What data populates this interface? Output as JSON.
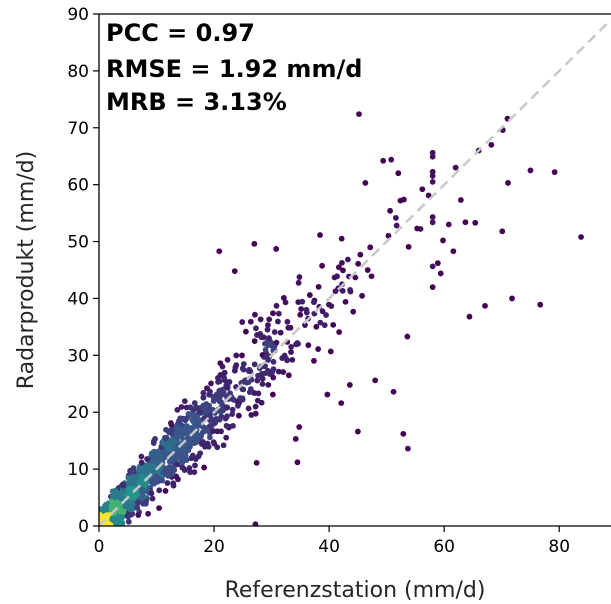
{
  "chart_data": {
    "type": "scatter",
    "variant": "hexbin-density",
    "xlabel": "Referenzstation (mm/d)",
    "ylabel": "Radarprodukt (mm/d)",
    "xlim": [
      0,
      89
    ],
    "ylim": [
      0,
      90
    ],
    "x_ticks": [
      "0",
      "20",
      "40",
      "60",
      "80"
    ],
    "y_ticks": [
      "0",
      "10",
      "20",
      "30",
      "40",
      "50",
      "60",
      "70",
      "80",
      "90"
    ],
    "grid": false,
    "reference_line": "1:1",
    "colormap": "viridis",
    "annotations": [
      "PCC = 0.97",
      "RMSE = 1.92 mm/d",
      "MRB = 3.13%"
    ],
    "outlier_points": [
      [
        45.2,
        72.4
      ],
      [
        71.0,
        71.6
      ],
      [
        70.2,
        69.6
      ],
      [
        68.2,
        67.0
      ],
      [
        49.4,
        64.2
      ],
      [
        66.0,
        66.0
      ],
      [
        62.0,
        63.0
      ],
      [
        79.2,
        62.2
      ],
      [
        75.0,
        62.5
      ],
      [
        56.2,
        59.2
      ],
      [
        46.3,
        60.3
      ],
      [
        71.1,
        60.3
      ],
      [
        52.4,
        57.2
      ],
      [
        57.3,
        58.1
      ],
      [
        50.6,
        55.4
      ],
      [
        62.9,
        57.3
      ],
      [
        55.3,
        52.3
      ],
      [
        65.4,
        53.3
      ],
      [
        63.7,
        53.4
      ],
      [
        60.8,
        53.0
      ],
      [
        83.8,
        50.8
      ],
      [
        70.1,
        51.8
      ],
      [
        59.8,
        50.2
      ],
      [
        61.6,
        48.3
      ],
      [
        58.9,
        46.2
      ],
      [
        59.4,
        44.4
      ],
      [
        71.8,
        40.0
      ],
      [
        76.7,
        38.9
      ],
      [
        67.1,
        38.7
      ],
      [
        64.4,
        36.8
      ],
      [
        53.6,
        33.3
      ],
      [
        48.0,
        25.6
      ],
      [
        51.2,
        23.6
      ],
      [
        42.1,
        21.6
      ],
      [
        45.0,
        16.6
      ],
      [
        53.7,
        13.6
      ],
      [
        52.9,
        16.2
      ],
      [
        20.9,
        48.3
      ],
      [
        23.6,
        44.8
      ],
      [
        27.0,
        49.6
      ],
      [
        30.8,
        48.7
      ],
      [
        39.7,
        23.1
      ],
      [
        34.8,
        17.4
      ],
      [
        34.2,
        15.3
      ],
      [
        27.2,
        0.3
      ],
      [
        27.4,
        11.1
      ],
      [
        34.5,
        11.2
      ],
      [
        43.6,
        24.8
      ]
    ]
  }
}
